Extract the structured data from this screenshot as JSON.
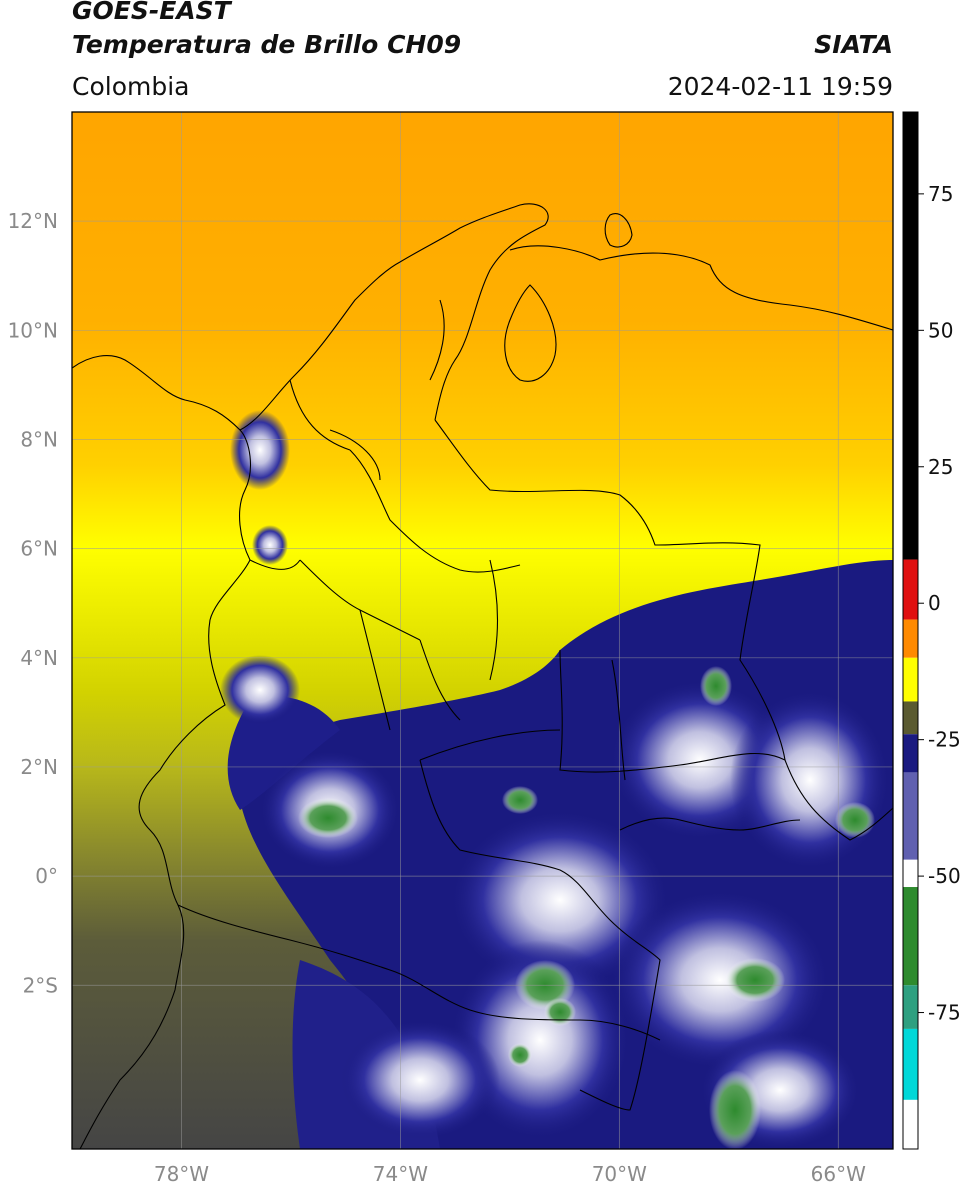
{
  "header": {
    "line1": "GOES-EAST",
    "line2": "Temperatura de Brillo CH09",
    "source": "SIATA",
    "region": "Colombia",
    "datetime": "2024-02-11 19:59"
  },
  "map": {
    "lon_range": [
      -80,
      -65
    ],
    "lat_range": [
      -5,
      14
    ],
    "lon_ticks": [
      {
        "lon": -78,
        "label": "78°W"
      },
      {
        "lon": -74,
        "label": "74°W"
      },
      {
        "lon": -70,
        "label": "70°W"
      },
      {
        "lon": -66,
        "label": "66°W"
      }
    ],
    "lat_ticks": [
      {
        "lat": 12,
        "label": "12°N"
      },
      {
        "lat": 10,
        "label": "10°N"
      },
      {
        "lat": 8,
        "label": "8°N"
      },
      {
        "lat": 6,
        "label": "6°N"
      },
      {
        "lat": 4,
        "label": "4°N"
      },
      {
        "lat": 2,
        "label": "2°N"
      },
      {
        "lat": 0,
        "label": "0°"
      },
      {
        "lat": -2,
        "label": "2°S"
      }
    ]
  },
  "colorbar": {
    "range": [
      -100,
      90
    ],
    "ticks": [
      {
        "value": 75,
        "label": "75"
      },
      {
        "value": 50,
        "label": "50"
      },
      {
        "value": 25,
        "label": "25"
      },
      {
        "value": 0,
        "label": "0"
      },
      {
        "value": -25,
        "label": "-25"
      },
      {
        "value": -50,
        "label": "-50"
      },
      {
        "value": -75,
        "label": "-75"
      }
    ],
    "colors": {
      "black": "#000000",
      "red": "#e01010",
      "orange": "#ff8a00",
      "yellow": "#ffff00",
      "olive": "#5a5a30",
      "navy": "#1a1a80",
      "white": "#ffffff",
      "green": "#2e8b2e",
      "cyan": "#00d8d8"
    }
  }
}
